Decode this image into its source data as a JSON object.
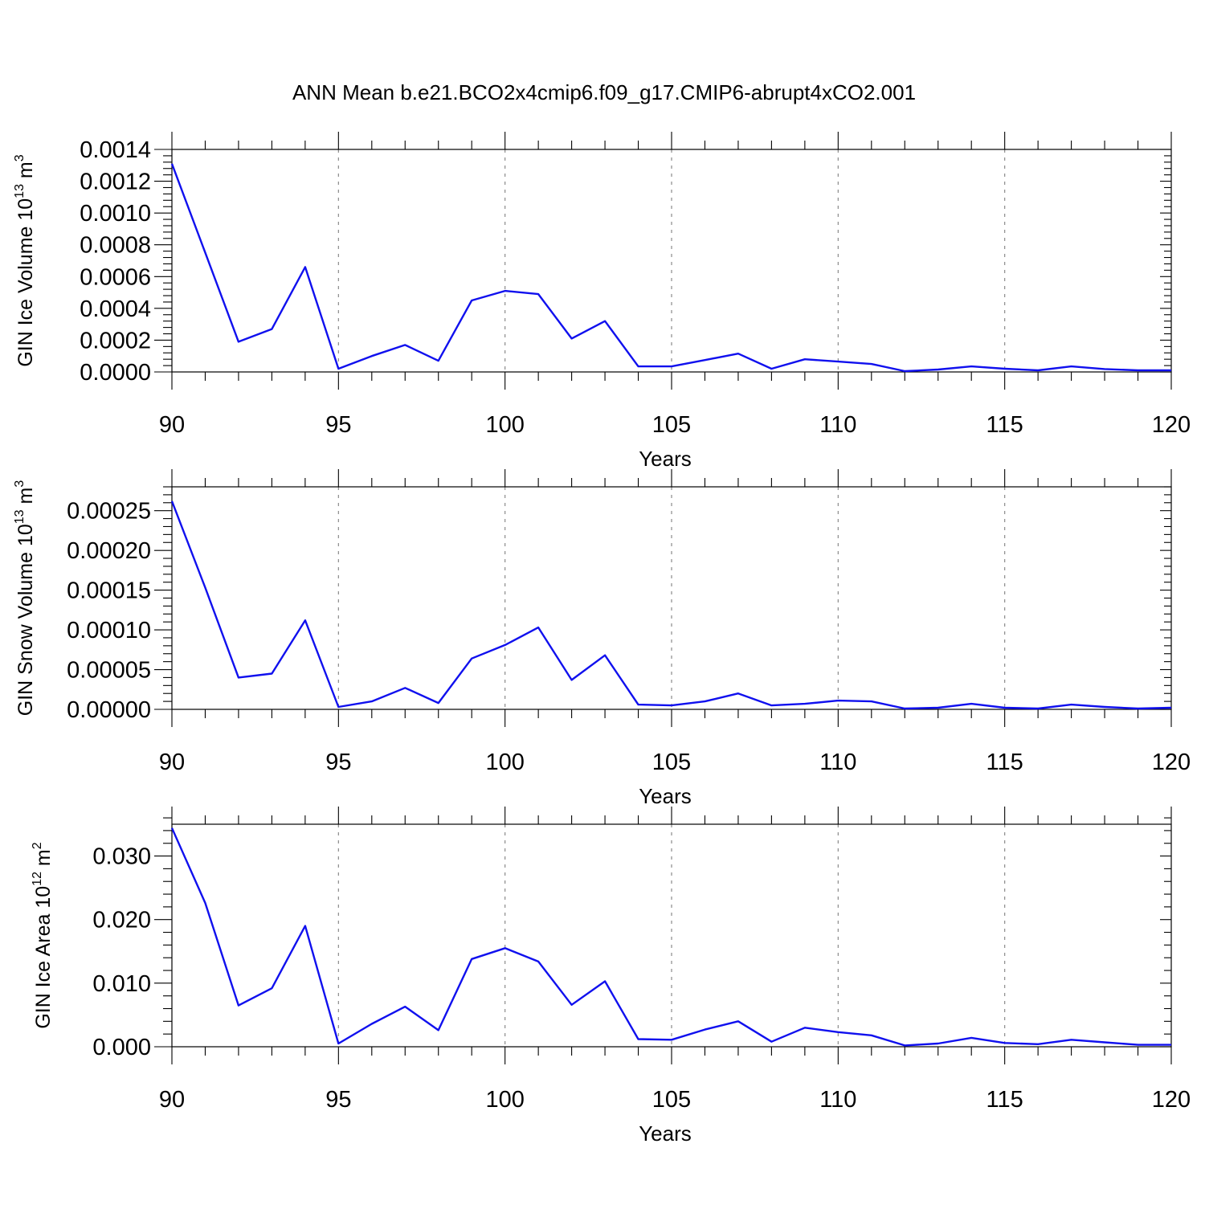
{
  "title": "ANN Mean b.e21.BCO2x4cmip6.f09_g17.CMIP6-abrupt4xCO2.001",
  "colors": {
    "series": "#1010ee",
    "grid": "#8a8a8a",
    "axes": "#000000"
  },
  "chart_data": [
    {
      "type": "line",
      "title": "",
      "xlabel": "Years",
      "ylabel": {
        "text": "GIN Ice Volume 10",
        "exp": "13",
        "unit": "m",
        "unit_exp": "3"
      },
      "xlim": [
        90,
        120
      ],
      "ylim": [
        0,
        0.0014
      ],
      "xticks": [
        90,
        95,
        100,
        105,
        110,
        115,
        120
      ],
      "xtick_labels": [
        "90",
        "95",
        "100",
        "105",
        "110",
        "115",
        "120"
      ],
      "yticks": [
        0,
        0.0002,
        0.0004,
        0.0006,
        0.0008,
        0.001,
        0.0012,
        0.0014
      ],
      "ytick_labels": [
        "0.0000",
        "0.0002",
        "0.0004",
        "0.0006",
        "0.0008",
        "0.0010",
        "0.0012",
        "0.0014"
      ],
      "grid": "x-dashed",
      "x": [
        90,
        91,
        92,
        93,
        94,
        95,
        96,
        97,
        98,
        99,
        100,
        101,
        102,
        103,
        104,
        105,
        106,
        107,
        108,
        109,
        110,
        111,
        112,
        113,
        114,
        115,
        116,
        117,
        118,
        119,
        120
      ],
      "series": [
        {
          "values": [
            0.00131,
            0.00075,
            0.00019,
            0.00027,
            0.00066,
            2e-05,
            0.0001,
            0.00017,
            7e-05,
            0.00045,
            0.00051,
            0.00049,
            0.00021,
            0.00032,
            3.5e-05,
            3.5e-05,
            7.5e-05,
            0.000115,
            2e-05,
            8e-05,
            6.5e-05,
            5e-05,
            5e-06,
            1.5e-05,
            3.5e-05,
            2e-05,
            1e-05,
            3.5e-05,
            1.8e-05,
            1e-05,
            1e-05
          ]
        }
      ]
    },
    {
      "type": "line",
      "title": "",
      "xlabel": "Years",
      "ylabel": {
        "text": "GIN Snow Volume 10",
        "exp": "13",
        "unit": "m",
        "unit_exp": "3"
      },
      "xlim": [
        90,
        120
      ],
      "ylim": [
        0,
        0.00028
      ],
      "xticks": [
        90,
        95,
        100,
        105,
        110,
        115,
        120
      ],
      "xtick_labels": [
        "90",
        "95",
        "100",
        "105",
        "110",
        "115",
        "120"
      ],
      "yticks": [
        0,
        5e-05,
        0.0001,
        0.00015,
        0.0002,
        0.00025
      ],
      "ytick_labels": [
        "0.00000",
        "0.00005",
        "0.00010",
        "0.00015",
        "0.00020",
        "0.00025"
      ],
      "grid": "x-dashed",
      "x": [
        90,
        91,
        92,
        93,
        94,
        95,
        96,
        97,
        98,
        99,
        100,
        101,
        102,
        103,
        104,
        105,
        106,
        107,
        108,
        109,
        110,
        111,
        112,
        113,
        114,
        115,
        116,
        117,
        118,
        119,
        120
      ],
      "series": [
        {
          "values": [
            0.000262,
            0.000153,
            4e-05,
            4.5e-05,
            0.000112,
            3e-06,
            1e-05,
            2.7e-05,
            8e-06,
            6.4e-05,
            8.1e-05,
            0.000103,
            3.7e-05,
            6.8e-05,
            6e-06,
            5e-06,
            1e-05,
            2e-05,
            5e-06,
            7e-06,
            1.1e-05,
            1e-05,
            1e-06,
            2e-06,
            7e-06,
            2e-06,
            1e-06,
            6e-06,
            3e-06,
            1e-06,
            2e-06
          ]
        }
      ]
    },
    {
      "type": "line",
      "title": "",
      "xlabel": "Years",
      "ylabel": {
        "text": "GIN Ice Area 10",
        "exp": "12",
        "unit": "m",
        "unit_exp": "2"
      },
      "xlim": [
        90,
        120
      ],
      "ylim": [
        0,
        0.035
      ],
      "xticks": [
        90,
        95,
        100,
        105,
        110,
        115,
        120
      ],
      "xtick_labels": [
        "90",
        "95",
        "100",
        "105",
        "110",
        "115",
        "120"
      ],
      "yticks": [
        0,
        0.01,
        0.02,
        0.03
      ],
      "ytick_labels": [
        "0.000",
        "0.010",
        "0.020",
        "0.030"
      ],
      "grid": "x-dashed",
      "x": [
        90,
        91,
        92,
        93,
        94,
        95,
        96,
        97,
        98,
        99,
        100,
        101,
        102,
        103,
        104,
        105,
        106,
        107,
        108,
        109,
        110,
        111,
        112,
        113,
        114,
        115,
        116,
        117,
        118,
        119,
        120
      ],
      "series": [
        {
          "values": [
            0.0344,
            0.0226,
            0.0065,
            0.0092,
            0.019,
            0.0005,
            0.0036,
            0.0063,
            0.0026,
            0.0138,
            0.0155,
            0.0134,
            0.0066,
            0.0103,
            0.0012,
            0.0011,
            0.0027,
            0.004,
            0.0008,
            0.003,
            0.0023,
            0.0018,
            0.0002,
            0.0005,
            0.0014,
            0.0006,
            0.0004,
            0.0011,
            0.0007,
            0.0003,
            0.0003
          ]
        }
      ]
    }
  ]
}
